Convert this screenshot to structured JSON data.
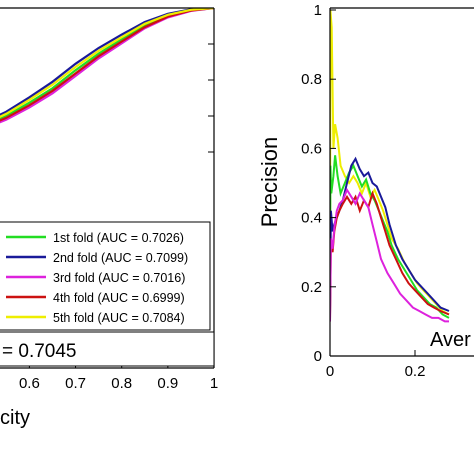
{
  "chart_data": [
    {
      "type": "line",
      "title": "",
      "xlabel": "city",
      "ylabel": "",
      "xlim": [
        0.5,
        1
      ],
      "ylim": [
        0.6,
        1
      ],
      "x_ticks": [
        "0.6",
        "0.7",
        "0.8",
        "0.9",
        "1"
      ],
      "x_tick_values": [
        0.6,
        0.7,
        0.8,
        0.9,
        1.0
      ],
      "grid": false,
      "legend_position": "bottom-right",
      "mean_auc_text": "= 0.7045",
      "series": [
        {
          "name": "1st fold (AUC = 0.7026)",
          "color": "#22dd22",
          "x": [
            0.5,
            0.55,
            0.6,
            0.65,
            0.7,
            0.75,
            0.8,
            0.85,
            0.9,
            0.95,
            1.0
          ],
          "y": [
            0.672,
            0.7,
            0.737,
            0.777,
            0.827,
            0.873,
            0.913,
            0.952,
            0.978,
            0.993,
            1.0
          ]
        },
        {
          "name": "2nd fold (AUC = 0.7099)",
          "color": "#1a1a99",
          "x": [
            0.5,
            0.55,
            0.6,
            0.65,
            0.7,
            0.75,
            0.8,
            0.85,
            0.9,
            0.95,
            1.0
          ],
          "y": [
            0.681,
            0.712,
            0.752,
            0.795,
            0.845,
            0.889,
            0.926,
            0.961,
            0.984,
            0.996,
            1.0
          ]
        },
        {
          "name": "3rd fold (AUC = 0.7016)",
          "color": "#dd22dd",
          "x": [
            0.5,
            0.55,
            0.6,
            0.65,
            0.7,
            0.75,
            0.8,
            0.85,
            0.9,
            0.95,
            1.0
          ],
          "y": [
            0.664,
            0.69,
            0.724,
            0.763,
            0.811,
            0.86,
            0.902,
            0.944,
            0.974,
            0.992,
            1.0
          ]
        },
        {
          "name": "4th fold (AUC = 0.6999)",
          "color": "#cc1111",
          "x": [
            0.5,
            0.55,
            0.6,
            0.65,
            0.7,
            0.75,
            0.8,
            0.85,
            0.9,
            0.95,
            1.0
          ],
          "y": [
            0.668,
            0.695,
            0.73,
            0.77,
            0.818,
            0.866,
            0.907,
            0.947,
            0.976,
            0.993,
            1.0
          ]
        },
        {
          "name": "5th fold (AUC = 0.7084)",
          "color": "#eeee00",
          "x": [
            0.5,
            0.55,
            0.6,
            0.65,
            0.7,
            0.75,
            0.8,
            0.85,
            0.9,
            0.95,
            1.0
          ],
          "y": [
            0.676,
            0.706,
            0.745,
            0.787,
            0.836,
            0.881,
            0.919,
            0.956,
            0.981,
            0.995,
            1.0
          ]
        }
      ]
    },
    {
      "type": "line",
      "title": "",
      "xlabel": "",
      "ylabel": "Precision",
      "xlim": [
        0,
        0.28
      ],
      "ylim": [
        0,
        1
      ],
      "x_ticks": [
        "0",
        "0.2"
      ],
      "x_tick_values": [
        0,
        0.2
      ],
      "y_ticks": [
        "0",
        "0.2",
        "0.4",
        "0.6",
        "0.8",
        "1"
      ],
      "y_tick_values": [
        0,
        0.2,
        0.4,
        0.6,
        0.8,
        1.0
      ],
      "grid": false,
      "annotation": "Aver",
      "series": [
        {
          "color": "#eeee00",
          "x": [
            0,
            0.001,
            0.004,
            0.008,
            0.012,
            0.018,
            0.025,
            0.035,
            0.045,
            0.055,
            0.065,
            0.075,
            0.085,
            0.095,
            0.105,
            0.115,
            0.125,
            0.135,
            0.145,
            0.16,
            0.175,
            0.19,
            0.205,
            0.22,
            0.235,
            0.25,
            0.265,
            0.28
          ],
          "y": [
            0.12,
            1.0,
            0.95,
            0.6,
            0.67,
            0.63,
            0.55,
            0.52,
            0.5,
            0.52,
            0.5,
            0.47,
            0.5,
            0.46,
            0.48,
            0.45,
            0.42,
            0.38,
            0.34,
            0.31,
            0.27,
            0.24,
            0.21,
            0.19,
            0.17,
            0.15,
            0.13,
            0.12
          ]
        },
        {
          "color": "#22dd22",
          "x": [
            0,
            0.001,
            0.003,
            0.008,
            0.012,
            0.018,
            0.025,
            0.035,
            0.045,
            0.055,
            0.065,
            0.075,
            0.085,
            0.095,
            0.105,
            0.115,
            0.125,
            0.135,
            0.145,
            0.16,
            0.175,
            0.19,
            0.205,
            0.22,
            0.235,
            0.25,
            0.265,
            0.28
          ],
          "y": [
            0.1,
            0.55,
            0.47,
            0.52,
            0.58,
            0.52,
            0.47,
            0.5,
            0.53,
            0.55,
            0.52,
            0.49,
            0.51,
            0.47,
            0.45,
            0.42,
            0.39,
            0.36,
            0.32,
            0.28,
            0.25,
            0.22,
            0.19,
            0.17,
            0.15,
            0.14,
            0.12,
            0.11
          ]
        },
        {
          "color": "#1a1a99",
          "x": [
            0,
            0.002,
            0.006,
            0.01,
            0.016,
            0.022,
            0.03,
            0.04,
            0.05,
            0.06,
            0.07,
            0.08,
            0.09,
            0.1,
            0.11,
            0.12,
            0.13,
            0.14,
            0.155,
            0.17,
            0.185,
            0.2,
            0.215,
            0.23,
            0.245,
            0.26,
            0.28
          ],
          "y": [
            0.12,
            0.42,
            0.36,
            0.38,
            0.4,
            0.42,
            0.45,
            0.5,
            0.55,
            0.57,
            0.54,
            0.52,
            0.53,
            0.5,
            0.49,
            0.46,
            0.43,
            0.38,
            0.32,
            0.28,
            0.25,
            0.22,
            0.2,
            0.18,
            0.16,
            0.14,
            0.13
          ]
        },
        {
          "color": "#cc1111",
          "x": [
            0,
            0.002,
            0.006,
            0.01,
            0.016,
            0.022,
            0.03,
            0.04,
            0.05,
            0.06,
            0.07,
            0.08,
            0.09,
            0.1,
            0.11,
            0.12,
            0.13,
            0.14,
            0.155,
            0.17,
            0.185,
            0.2,
            0.215,
            0.23,
            0.245,
            0.26,
            0.28
          ],
          "y": [
            0.1,
            0.33,
            0.3,
            0.36,
            0.4,
            0.42,
            0.44,
            0.46,
            0.44,
            0.46,
            0.42,
            0.45,
            0.43,
            0.47,
            0.44,
            0.4,
            0.36,
            0.32,
            0.28,
            0.24,
            0.21,
            0.19,
            0.17,
            0.15,
            0.14,
            0.13,
            0.12
          ]
        },
        {
          "color": "#dd22dd",
          "x": [
            0,
            0.002,
            0.006,
            0.01,
            0.016,
            0.022,
            0.03,
            0.04,
            0.05,
            0.06,
            0.07,
            0.08,
            0.09,
            0.1,
            0.11,
            0.12,
            0.135,
            0.15,
            0.165,
            0.18,
            0.195,
            0.21,
            0.225,
            0.24,
            0.255,
            0.27,
            0.28
          ],
          "y": [
            0.1,
            0.34,
            0.31,
            0.37,
            0.42,
            0.44,
            0.45,
            0.48,
            0.46,
            0.44,
            0.47,
            0.45,
            0.43,
            0.38,
            0.33,
            0.28,
            0.24,
            0.21,
            0.18,
            0.16,
            0.14,
            0.13,
            0.12,
            0.11,
            0.11,
            0.1,
            0.1
          ]
        }
      ]
    }
  ]
}
